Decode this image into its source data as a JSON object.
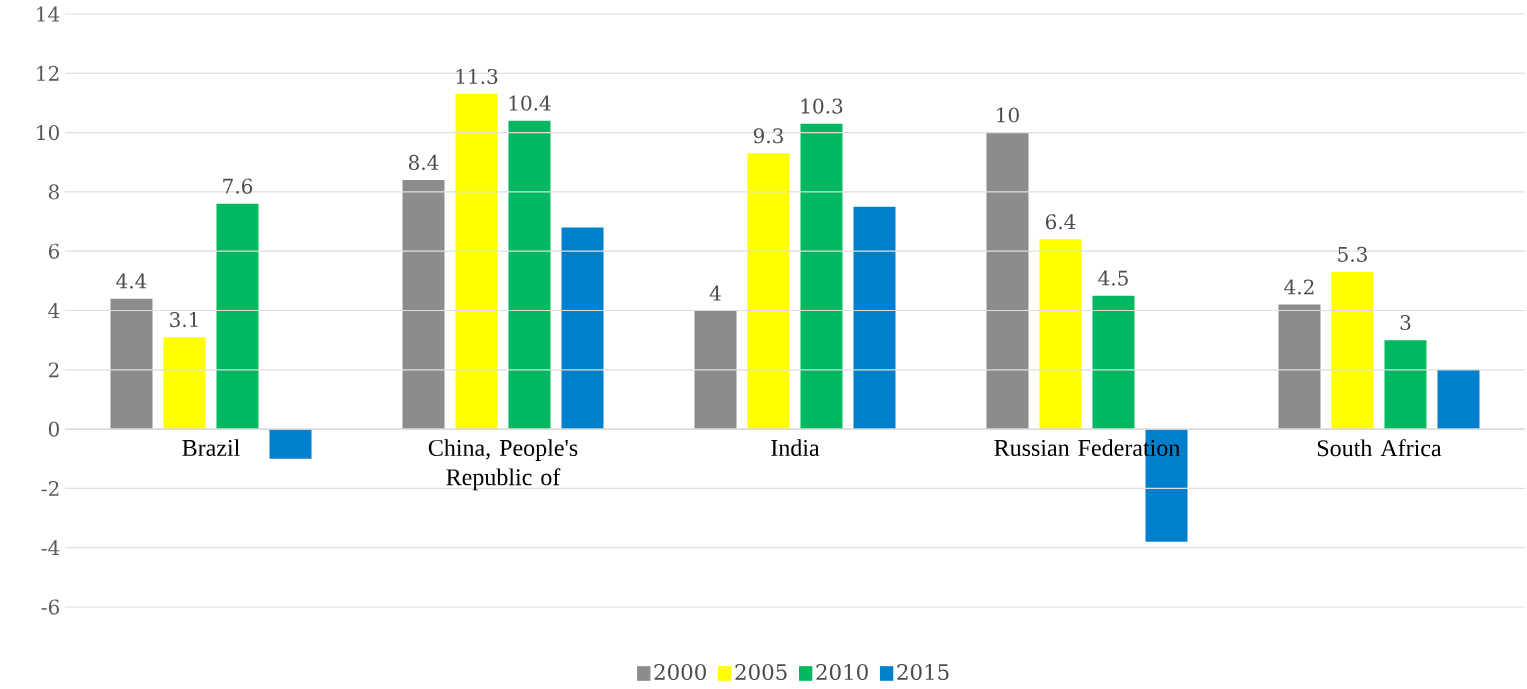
{
  "chart_data": {
    "type": "bar",
    "categories": [
      "Brazil",
      "China, People's Republic of",
      "India",
      "Russian Federation",
      "South Africa"
    ],
    "series": [
      {
        "name": "2000",
        "color": "#8c8c8c",
        "values": [
          4.4,
          8.4,
          4,
          10,
          4.2
        ],
        "value_labels": [
          "4.4",
          "8.4",
          "4",
          "10",
          "4.2"
        ]
      },
      {
        "name": "2005",
        "color": "#ffff00",
        "values": [
          3.1,
          11.3,
          9.3,
          6.4,
          5.3
        ],
        "value_labels": [
          "3.1",
          "11.3",
          "9.3",
          "6.4",
          "5.3"
        ]
      },
      {
        "name": "2010",
        "color": "#00b85f",
        "values": [
          7.6,
          10.4,
          10.3,
          4.5,
          3
        ],
        "value_labels": [
          "7.6",
          "10.4",
          "10.3",
          "4.5",
          "3"
        ]
      },
      {
        "name": "2015",
        "color": "#0080cc",
        "values": [
          -1.0,
          6.8,
          7.5,
          -3.8,
          2.0
        ]
      }
    ],
    "ylim": [
      -6,
      14
    ],
    "yticks": [
      -6,
      -4,
      -2,
      0,
      2,
      4,
      6,
      8,
      10,
      12,
      14
    ],
    "grid": "y",
    "legend": "bottom"
  }
}
